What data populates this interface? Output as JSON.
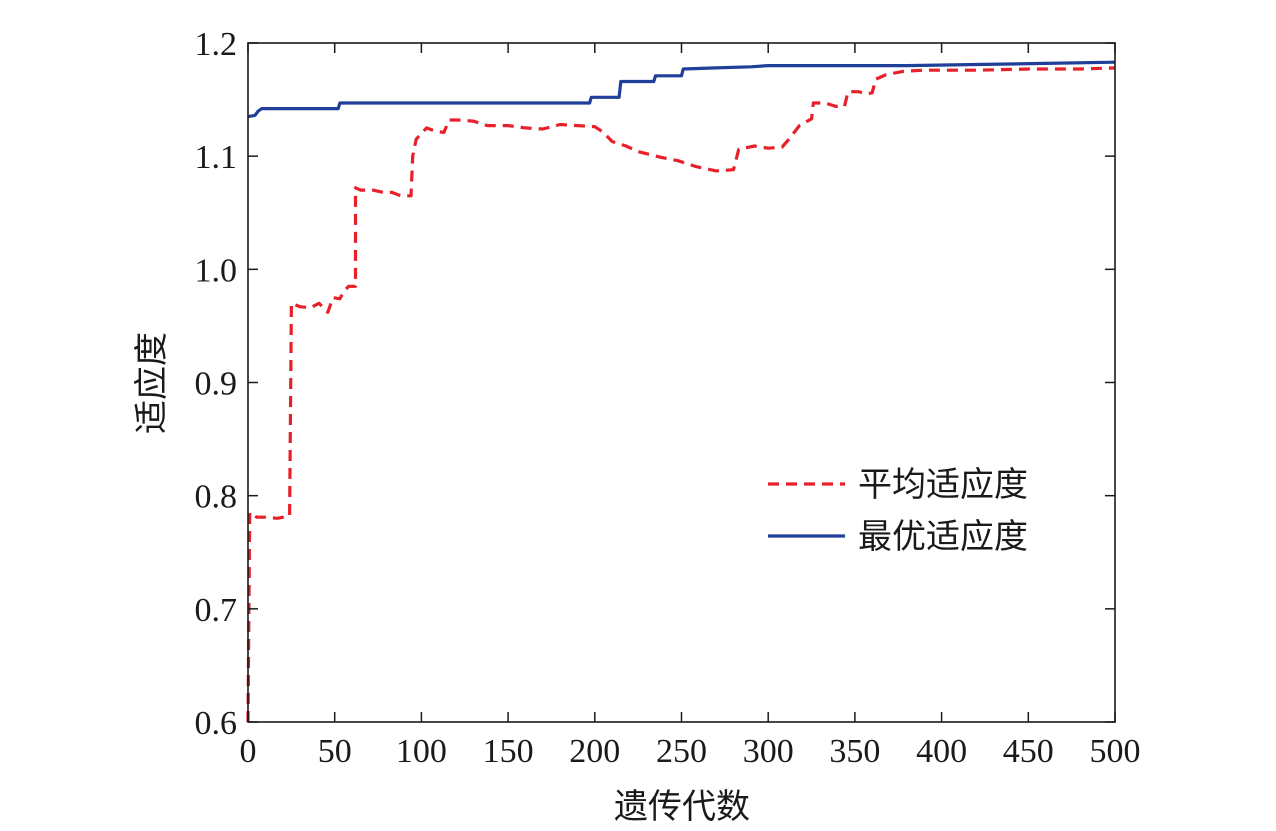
{
  "chart_data": {
    "type": "line",
    "title": "",
    "xlabel": "遗传代数",
    "ylabel": "适应度",
    "xlim": [
      0,
      500
    ],
    "ylim": [
      0.6,
      1.2
    ],
    "x_ticks": [
      0,
      50,
      100,
      150,
      200,
      250,
      300,
      350,
      400,
      450,
      500
    ],
    "x_tick_labels": [
      "0",
      "50",
      "100",
      "150",
      "200",
      "250",
      "300",
      "350",
      "400",
      "450",
      "500"
    ],
    "y_ticks": [
      0.6,
      0.7,
      0.8,
      0.9,
      1.0,
      1.1,
      1.2
    ],
    "y_tick_labels": [
      "0.6",
      "0.7",
      "0.8",
      "0.9",
      "1.0",
      "1.1",
      "1.2"
    ],
    "grid": false,
    "legend_position": "right",
    "series": [
      {
        "name": "平均适应度",
        "color": "#e8202a",
        "dash": "dashed",
        "points": [
          [
            0,
            0.6
          ],
          [
            1,
            0.785
          ],
          [
            5,
            0.781
          ],
          [
            10,
            0.781
          ],
          [
            17,
            0.78
          ],
          [
            24,
            0.782
          ],
          [
            25,
            0.97
          ],
          [
            30,
            0.967
          ],
          [
            36,
            0.966
          ],
          [
            41,
            0.97
          ],
          [
            46,
            0.962
          ],
          [
            49,
            0.975
          ],
          [
            53,
            0.974
          ],
          [
            55,
            0.98
          ],
          [
            58,
            0.985
          ],
          [
            62,
            0.985
          ],
          [
            62,
            1.072
          ],
          [
            65,
            1.07
          ],
          [
            72,
            1.07
          ],
          [
            78,
            1.068
          ],
          [
            83,
            1.068
          ],
          [
            88,
            1.065
          ],
          [
            94,
            1.065
          ],
          [
            95,
            1.1
          ],
          [
            97,
            1.115
          ],
          [
            103,
            1.125
          ],
          [
            108,
            1.122
          ],
          [
            113,
            1.121
          ],
          [
            116,
            1.132
          ],
          [
            121,
            1.132
          ],
          [
            130,
            1.131
          ],
          [
            138,
            1.127
          ],
          [
            150,
            1.127
          ],
          [
            160,
            1.125
          ],
          [
            170,
            1.124
          ],
          [
            180,
            1.128
          ],
          [
            190,
            1.127
          ],
          [
            200,
            1.126
          ],
          [
            205,
            1.121
          ],
          [
            210,
            1.113
          ],
          [
            218,
            1.109
          ],
          [
            225,
            1.104
          ],
          [
            238,
            1.099
          ],
          [
            248,
            1.096
          ],
          [
            258,
            1.091
          ],
          [
            270,
            1.087
          ],
          [
            280,
            1.088
          ],
          [
            283,
            1.106
          ],
          [
            292,
            1.109
          ],
          [
            300,
            1.107
          ],
          [
            308,
            1.108
          ],
          [
            312,
            1.115
          ],
          [
            318,
            1.127
          ],
          [
            325,
            1.133
          ],
          [
            326,
            1.147
          ],
          [
            333,
            1.147
          ],
          [
            339,
            1.144
          ],
          [
            344,
            1.144
          ],
          [
            346,
            1.157
          ],
          [
            352,
            1.157
          ],
          [
            357,
            1.155
          ],
          [
            360,
            1.156
          ],
          [
            362,
            1.168
          ],
          [
            368,
            1.172
          ],
          [
            378,
            1.175
          ],
          [
            390,
            1.176
          ],
          [
            420,
            1.176
          ],
          [
            450,
            1.177
          ],
          [
            480,
            1.177
          ],
          [
            500,
            1.178
          ]
        ]
      },
      {
        "name": "最优适应度",
        "color": "#1f3f99",
        "dash": "solid",
        "points": [
          [
            0,
            1.135
          ],
          [
            4,
            1.136
          ],
          [
            6,
            1.14
          ],
          [
            8,
            1.142
          ],
          [
            52,
            1.142
          ],
          [
            53,
            1.147
          ],
          [
            197,
            1.147
          ],
          [
            198,
            1.152
          ],
          [
            214,
            1.152
          ],
          [
            215,
            1.166
          ],
          [
            234,
            1.166
          ],
          [
            235,
            1.171
          ],
          [
            250,
            1.171
          ],
          [
            251,
            1.177
          ],
          [
            270,
            1.178
          ],
          [
            290,
            1.179
          ],
          [
            300,
            1.18
          ],
          [
            340,
            1.18
          ],
          [
            380,
            1.18
          ],
          [
            420,
            1.181
          ],
          [
            460,
            1.182
          ],
          [
            500,
            1.183
          ]
        ]
      }
    ]
  }
}
